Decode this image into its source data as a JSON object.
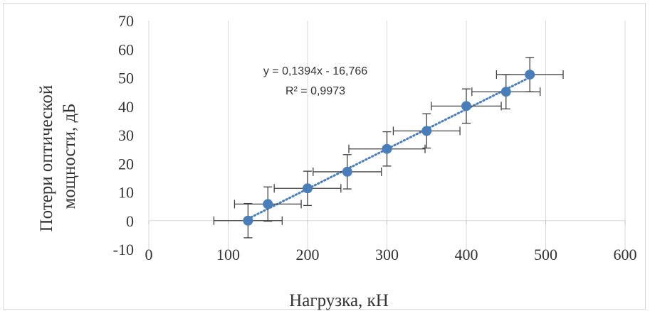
{
  "chart_data": {
    "type": "scatter",
    "title": "",
    "xlabel": "Нагрузка, кН",
    "ylabel_lines": [
      "Потери оптической",
      "мощности, дБ"
    ],
    "xlim": [
      0,
      600
    ],
    "ylim": [
      -10,
      70
    ],
    "xticks": [
      0,
      100,
      200,
      300,
      400,
      500,
      600
    ],
    "yticks": [
      -10,
      0,
      10,
      20,
      30,
      40,
      50,
      60,
      70
    ],
    "grid": "vertical",
    "series": [
      {
        "x": [
          125,
          150,
          200,
          250,
          300,
          350,
          400,
          450,
          480
        ],
        "y": [
          0,
          5.8,
          11.3,
          17.1,
          25.1,
          31.4,
          40.1,
          45.1,
          51.1
        ],
        "x_error": [
          43,
          42,
          42,
          43,
          48,
          42,
          44,
          43,
          42
        ],
        "y_error": [
          6,
          6,
          6,
          6,
          6,
          6,
          6,
          6,
          6
        ],
        "color": "#4a7ebb"
      }
    ],
    "trendline": {
      "type": "linear",
      "slope": 0.1394,
      "intercept": -16.766,
      "x_range": [
        125,
        480
      ],
      "color": "#4a7ebb",
      "style": "dotted"
    },
    "annotations": {
      "equation": "y = 0,1394x - 16,766",
      "r_squared": "R² = 0,9973"
    }
  }
}
